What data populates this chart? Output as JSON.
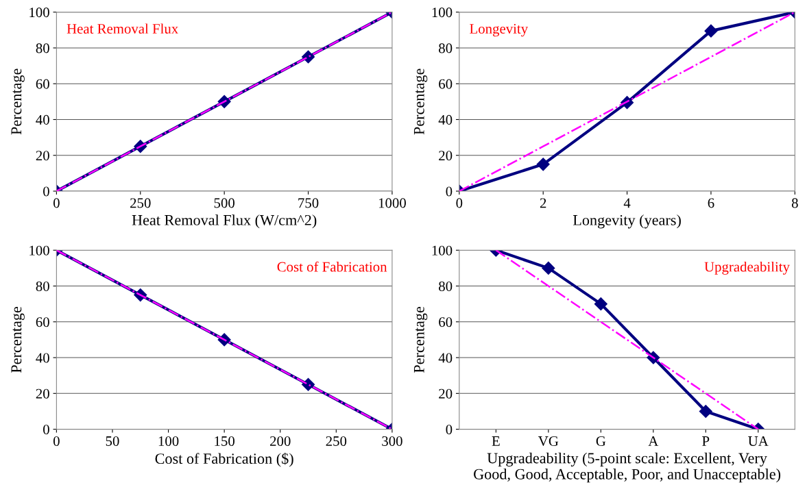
{
  "chart_data": [
    {
      "type": "line",
      "xlabel": "Heat Removal Flux (W/cm^2)",
      "ylabel": "Percentage",
      "annotations": [
        "Heat Removal Flux"
      ],
      "x": [
        0,
        250,
        500,
        750,
        1000
      ],
      "xlim": [
        0,
        1000
      ],
      "xticks": [
        0,
        250,
        500,
        750,
        1000
      ],
      "ylim": [
        0,
        100
      ],
      "yticks": [
        0,
        20,
        40,
        60,
        80,
        100
      ],
      "grid": "y",
      "series": [
        {
          "color": "#ff00ff",
          "line_style": "dashdot",
          "marker": "none",
          "values": [
            0,
            25,
            50,
            75,
            100
          ]
        },
        {
          "color": "#000080",
          "line_style": "solid",
          "marker": "diamond",
          "values": [
            0,
            25,
            50,
            75,
            100
          ]
        }
      ]
    },
    {
      "type": "line",
      "xlabel": "Longevity (years)",
      "ylabel": "Percentage",
      "annotations": [
        "Longevity"
      ],
      "x": [
        0,
        2,
        4,
        6,
        8
      ],
      "xlim": [
        0,
        8
      ],
      "xticks": [
        0,
        2,
        4,
        6,
        8
      ],
      "ylim": [
        0,
        100
      ],
      "yticks": [
        0,
        20,
        40,
        60,
        80,
        100
      ],
      "grid": "y",
      "series": [
        {
          "color": "#ff00ff",
          "line_style": "dashdot",
          "marker": "none",
          "values": [
            0,
            25,
            50,
            75,
            100
          ]
        },
        {
          "color": "#000080",
          "line_style": "solid",
          "marker": "diamond",
          "values": [
            0,
            15,
            49.5,
            89.5,
            100
          ]
        }
      ]
    },
    {
      "type": "line",
      "xlabel": "Cost of Fabrication ($)",
      "ylabel": "Percentage",
      "annotations": [
        "Cost of Fabrication"
      ],
      "x": [
        0,
        75,
        150,
        225,
        300
      ],
      "xlim": [
        0,
        300
      ],
      "xticks": [
        0,
        50,
        100,
        150,
        200,
        250,
        300
      ],
      "ylim": [
        0,
        100
      ],
      "yticks": [
        0,
        20,
        40,
        60,
        80,
        100
      ],
      "grid": "y",
      "series": [
        {
          "color": "#ff00ff",
          "line_style": "dashdot",
          "marker": "none",
          "values": [
            100,
            75,
            50,
            25,
            0
          ]
        },
        {
          "color": "#000080",
          "line_style": "solid",
          "marker": "diamond",
          "values": [
            100,
            75,
            50,
            25,
            0
          ]
        }
      ]
    },
    {
      "type": "line",
      "xlabel": "Upgradeability (5-point scale: Excellent, Very\nGood, Good, Acceptable, Poor, and Unacceptable)",
      "ylabel": "Percentage",
      "annotations": [
        "Upgradeability"
      ],
      "categories": [
        "E",
        "VG",
        "G",
        "A",
        "P",
        "UA"
      ],
      "ylim": [
        0,
        100
      ],
      "yticks": [
        0,
        20,
        40,
        60,
        80,
        100
      ],
      "grid": "y",
      "series": [
        {
          "color": "#ff00ff",
          "line_style": "dashdot",
          "marker": "none",
          "values": [
            100,
            80,
            60,
            40,
            20,
            0
          ]
        },
        {
          "color": "#000080",
          "line_style": "solid",
          "marker": "diamond",
          "values": [
            100,
            90,
            70,
            40,
            10,
            0
          ]
        }
      ]
    }
  ]
}
